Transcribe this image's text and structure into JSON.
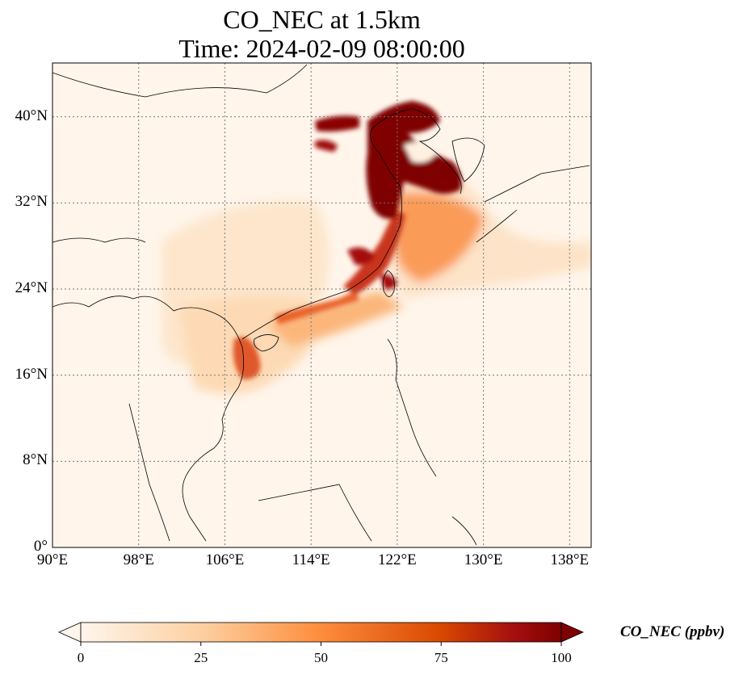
{
  "title": {
    "line1": "CO_NEC at 1.5km",
    "line2": "Time: 2024-02-09 08:00:00"
  },
  "map": {
    "variable": "CO_NEC",
    "level": "1.5km",
    "region": "East and Southeast Asia",
    "lon_range": [
      90,
      140
    ],
    "lat_range": [
      0,
      45
    ],
    "gridlines": "dotted",
    "colormap": [
      "#fff5eb",
      "#fdd9b4",
      "#fda762",
      "#f36d1f",
      "#c63c02",
      "#7f2704"
    ],
    "background_color": "#fff5eb",
    "plume_max_color": "#7f0000"
  },
  "y_ticks": [
    {
      "value": 0,
      "label": "0°"
    },
    {
      "value": 8,
      "label": "8°N"
    },
    {
      "value": 16,
      "label": "16°N"
    },
    {
      "value": 24,
      "label": "24°N"
    },
    {
      "value": 32,
      "label": "32°N"
    },
    {
      "value": 40,
      "label": "40°N"
    }
  ],
  "x_ticks": [
    {
      "value": 90,
      "label": "90°E"
    },
    {
      "value": 98,
      "label": "98°E"
    },
    {
      "value": 106,
      "label": "106°E"
    },
    {
      "value": 114,
      "label": "114°E"
    },
    {
      "value": 122,
      "label": "122°E"
    },
    {
      "value": 130,
      "label": "130°E"
    },
    {
      "value": 138,
      "label": "138°E"
    }
  ],
  "colorbar": {
    "label": "CO_NEC (ppbv)",
    "min": 0,
    "max": 100,
    "extend": "both",
    "ticks": [
      {
        "value": 0,
        "label": "0"
      },
      {
        "value": 25,
        "label": "25"
      },
      {
        "value": 50,
        "label": "50"
      },
      {
        "value": 75,
        "label": "75"
      },
      {
        "value": 100,
        "label": "100"
      }
    ]
  }
}
